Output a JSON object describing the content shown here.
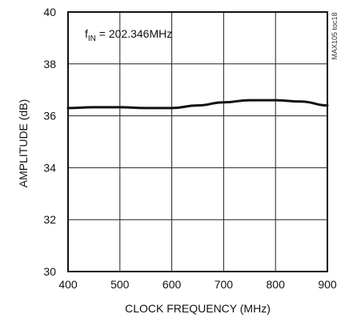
{
  "chart_data": {
    "type": "line",
    "title": "",
    "xlabel": "CLOCK FREQUENCY (MHz)",
    "ylabel": "AMPLITUDE (dB)",
    "xlim": [
      400,
      900
    ],
    "ylim": [
      30,
      40
    ],
    "x_ticks": [
      400,
      500,
      600,
      700,
      800,
      900
    ],
    "y_ticks": [
      30,
      32,
      34,
      36,
      38,
      40
    ],
    "grid": true,
    "annotation": {
      "prefix": "f",
      "subscript": "IN",
      "suffix": " = 202.346MHz"
    },
    "watermark": "MAX105 toc18",
    "series": [
      {
        "color": "#111111",
        "x": [
          400,
          450,
          500,
          550,
          600,
          650,
          700,
          750,
          800,
          850,
          900
        ],
        "y": [
          36.3,
          36.33,
          36.33,
          36.3,
          36.3,
          36.4,
          36.52,
          36.6,
          36.6,
          36.55,
          36.4
        ]
      }
    ]
  }
}
